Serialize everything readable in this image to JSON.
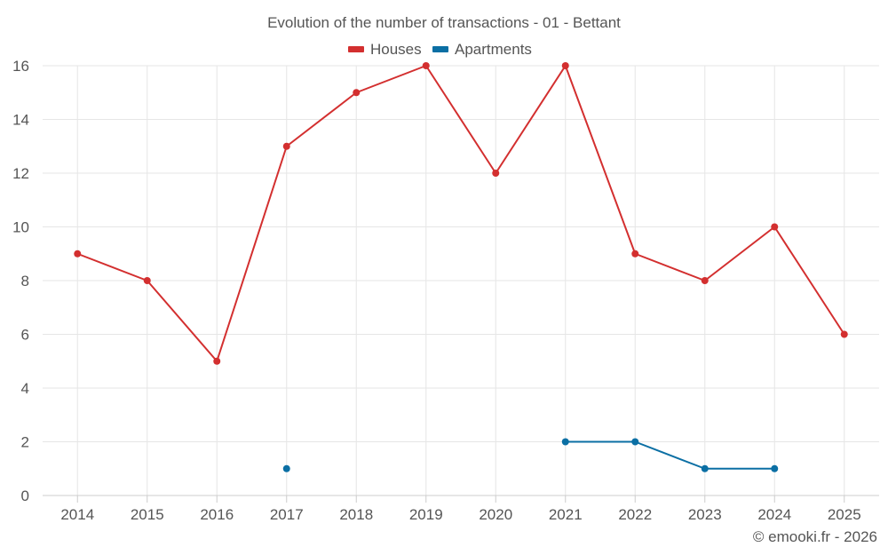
{
  "chart_data": {
    "type": "line",
    "title": "Evolution of the number of transactions - 01 - Bettant",
    "xlabel": "",
    "ylabel": "",
    "categories": [
      "2014",
      "2015",
      "2016",
      "2017",
      "2018",
      "2019",
      "2020",
      "2021",
      "2022",
      "2023",
      "2024",
      "2025"
    ],
    "ylim": [
      0,
      16
    ],
    "yticks": [
      0,
      2,
      4,
      6,
      8,
      10,
      12,
      14,
      16
    ],
    "grid": true,
    "legend_position": "top-center",
    "series": [
      {
        "name": "Houses",
        "color": "#d32f2f",
        "values": [
          9,
          8,
          5,
          13,
          15,
          16,
          12,
          16,
          9,
          8,
          10,
          6
        ]
      },
      {
        "name": "Apartments",
        "color": "#0b6fa4",
        "values": [
          null,
          null,
          null,
          1,
          null,
          null,
          null,
          2,
          2,
          1,
          1,
          null
        ]
      }
    ]
  },
  "credit": "© emooki.fr - 2026"
}
